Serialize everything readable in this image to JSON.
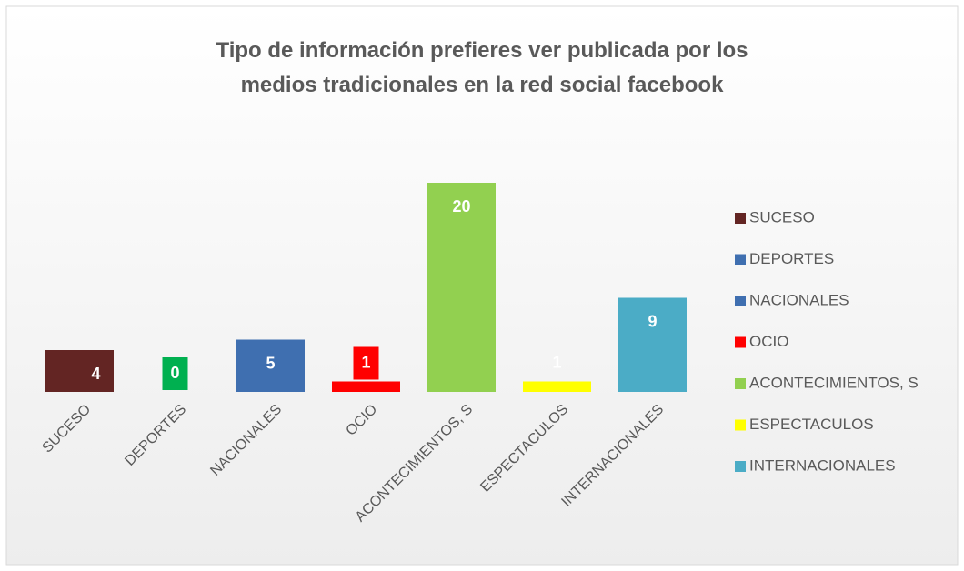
{
  "chart_data": {
    "type": "bar",
    "title": "Tipo de información prefieres ver publicada por los medios tradicionales en la red social facebook",
    "categories": [
      "SUCESO",
      "DEPORTES",
      "NACIONALES",
      "OCIO",
      "ACONTECIMIENTOS, S",
      "ESPECTACULOS",
      "INTERNACIONALES"
    ],
    "values": [
      4,
      0,
      5,
      1,
      20,
      1,
      9
    ],
    "colors": [
      "#632523",
      "#00b050",
      "#3f6fb0",
      "#ff0000",
      "#92d050",
      "#ffff00",
      "#4bacc6"
    ],
    "legend_colors": [
      "#632523",
      "#3f6fb0",
      "#3f6fb0",
      "#ff0000",
      "#92d050",
      "#ffff00",
      "#4bacc6"
    ],
    "ylim": [
      0,
      20
    ],
    "legend": "right"
  }
}
